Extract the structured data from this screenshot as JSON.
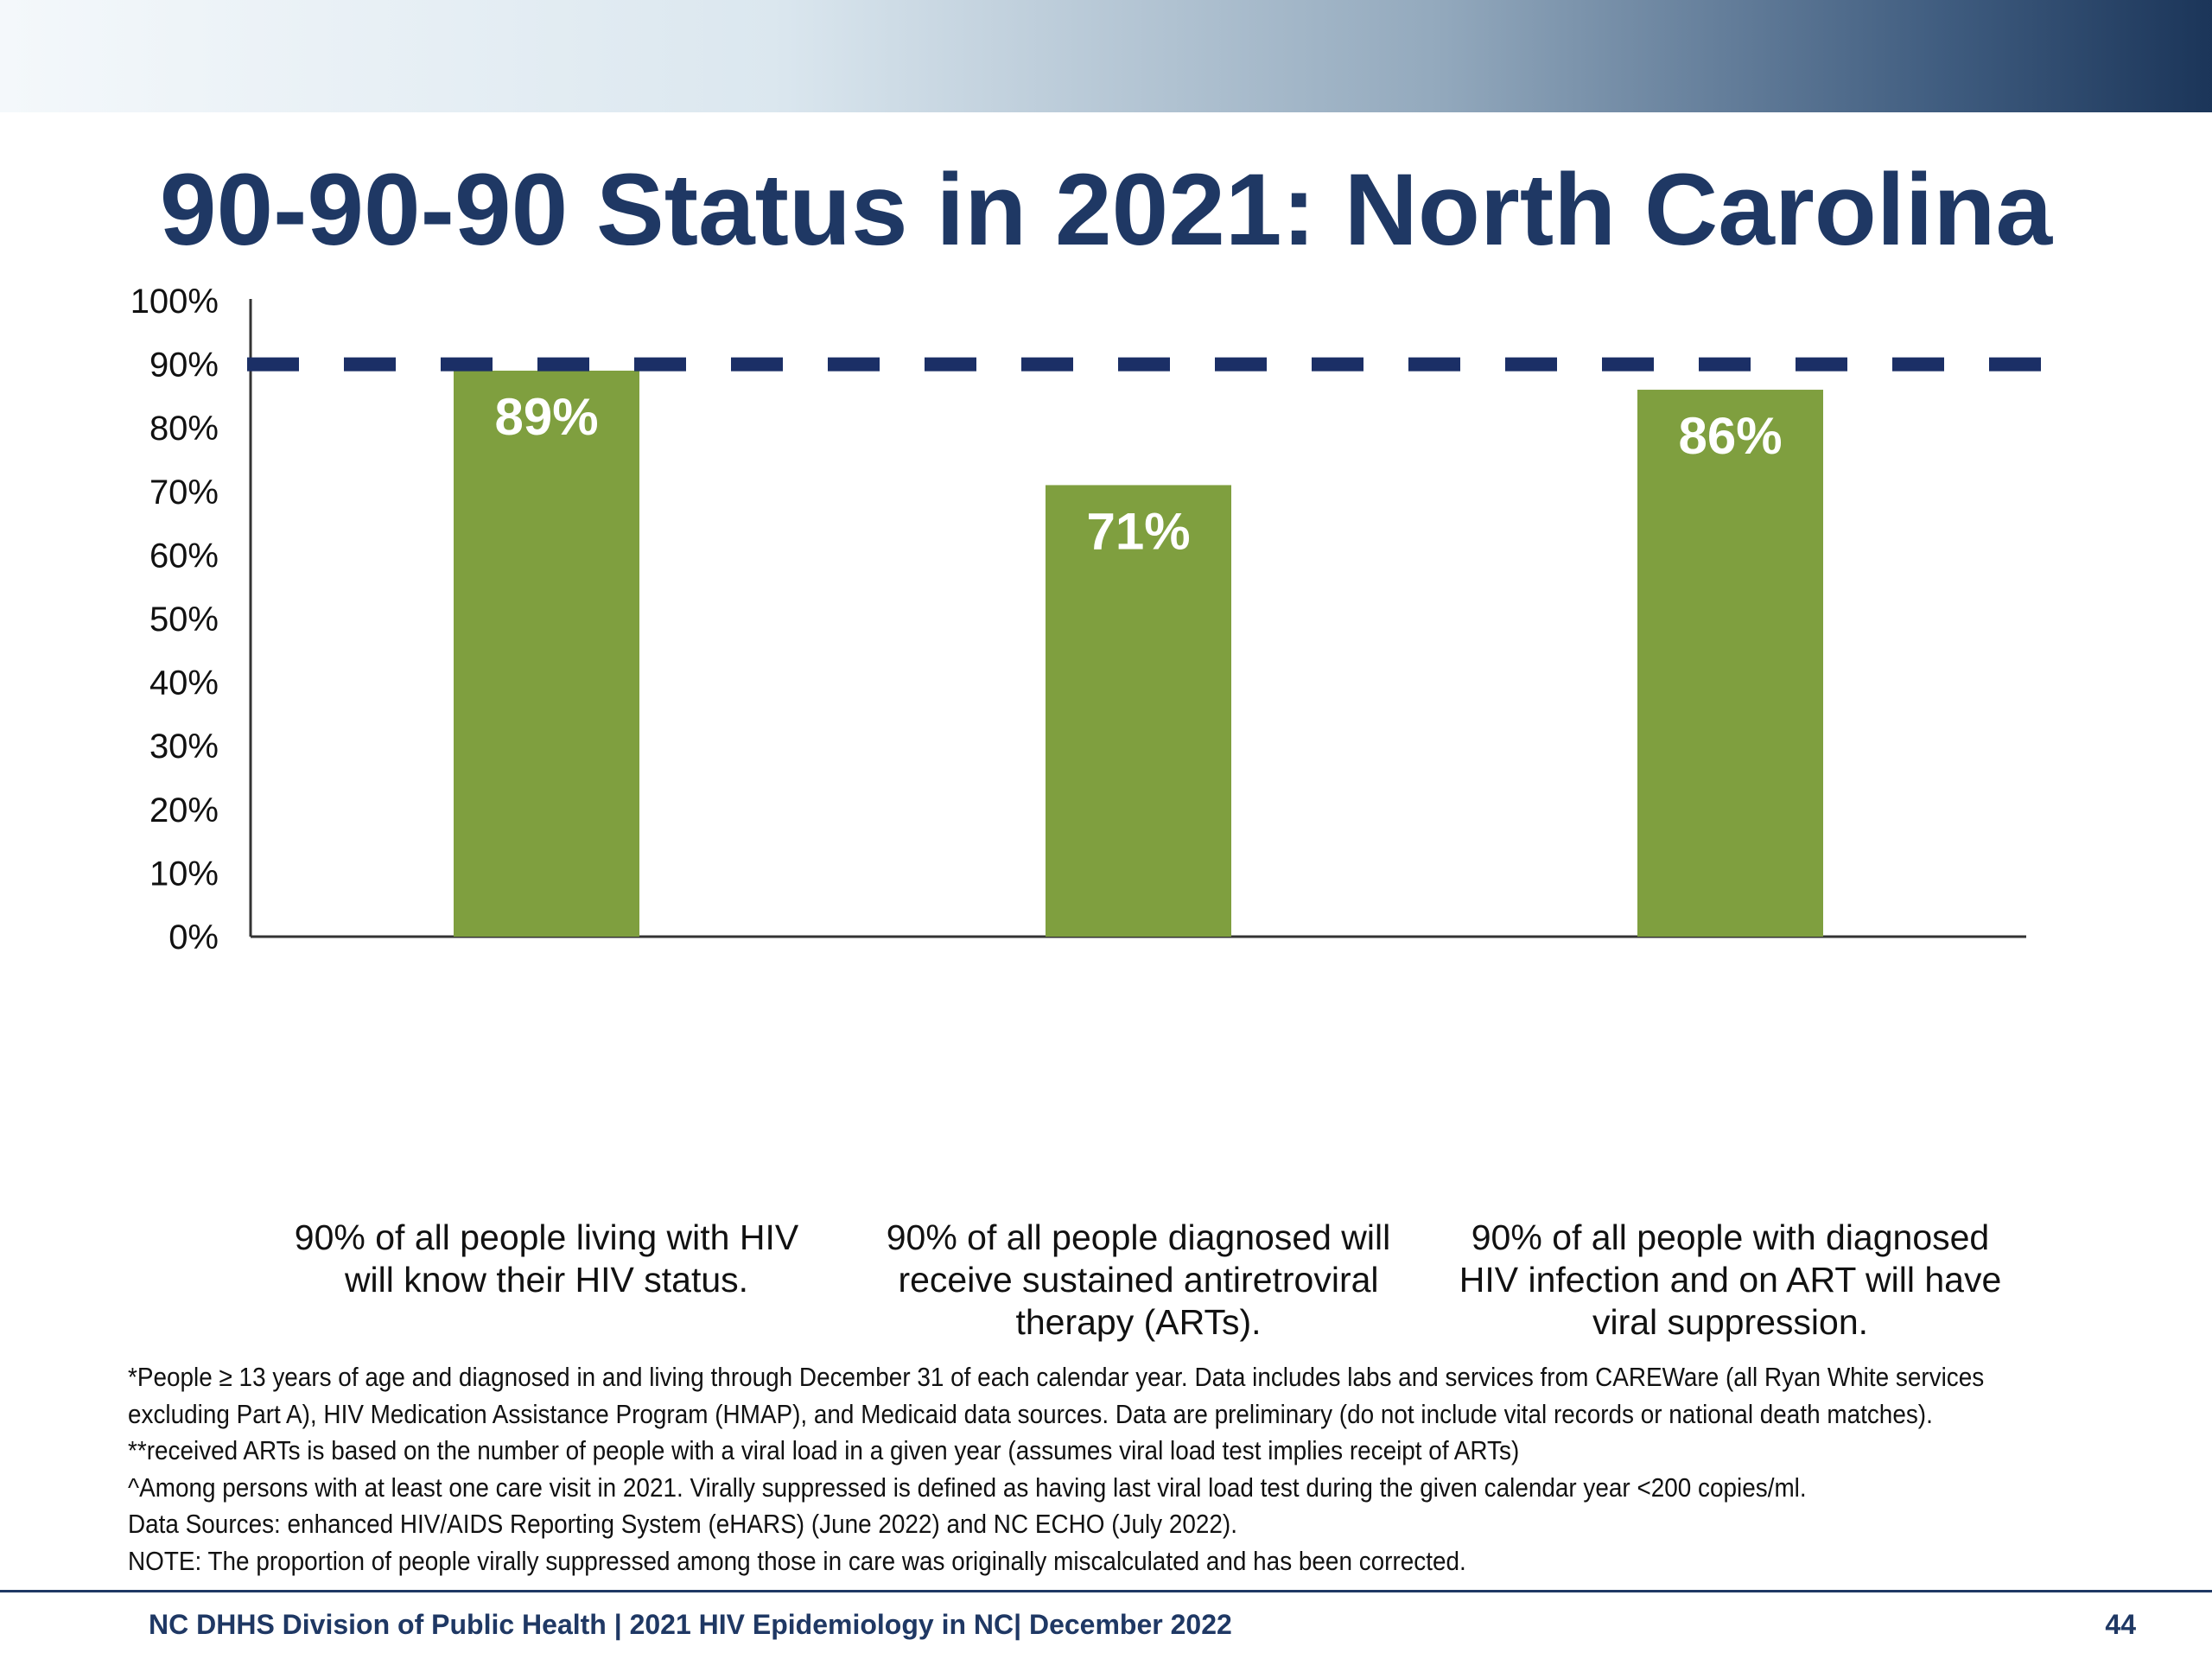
{
  "slide": {
    "title": "90-90-90 Status in 2021: North Carolina",
    "footer": "NC DHHS Division of Public Health | 2021 HIV Epidemiology in NC| December 2022",
    "page_number": "44",
    "notes": [
      "*People ≥ 13 years of age and diagnosed in and living through December 31 of each calendar year. Data includes labs and services from CAREWare (all Ryan White services",
      "excluding Part A), HIV Medication Assistance Program (HMAP), and Medicaid data sources. Data are preliminary (do not include vital records or national death matches).",
      "**received ARTs is based on the number of people with a viral load in a given year (assumes viral load test implies receipt of ARTs)",
      "^Among persons with at least one care visit in 2021. Virally suppressed is defined as having last viral load test during the given calendar year <200 copies/ml.",
      "Data Sources: enhanced HIV/AIDS Reporting System (eHARS) (June 2022) and NC ECHO (July 2022).",
      "NOTE: The proportion of people virally suppressed among those in care was originally miscalculated and has been corrected."
    ]
  },
  "colors": {
    "bar": "#7f9f3f",
    "target_line": "#1b2f66",
    "title": "#1f3864"
  },
  "chart_data": {
    "type": "bar",
    "categories": [
      "90% of all people living with HIV will know their HIV status.",
      "90% of all people diagnosed will receive sustained antiretroviral therapy (ARTs).",
      "90% of all people with diagnosed HIV infection and on ART will have viral suppression."
    ],
    "values": [
      89,
      71,
      86
    ],
    "data_labels": [
      "89%",
      "71%",
      "86%"
    ],
    "ylim": [
      0,
      100
    ],
    "yticks": [
      0,
      10,
      20,
      30,
      40,
      50,
      60,
      70,
      80,
      90,
      100
    ],
    "ytick_labels": [
      "0%",
      "10%",
      "20%",
      "30%",
      "40%",
      "50%",
      "60%",
      "70%",
      "80%",
      "90%",
      "100%"
    ],
    "target_line": 90,
    "target_line_style": "dashed",
    "legend": "none",
    "grid": false
  }
}
